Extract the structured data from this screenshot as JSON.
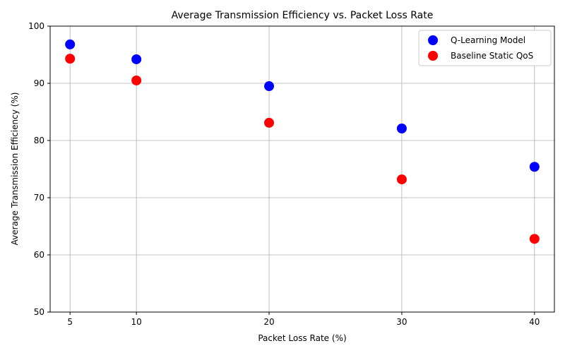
{
  "chart_data": {
    "type": "scatter",
    "title": "Average Transmission Efficiency vs. Packet Loss Rate",
    "xlabel": "Packet Loss Rate (%)",
    "ylabel": "Average Transmission Efficiency (%)",
    "x": [
      5,
      10,
      20,
      30,
      40
    ],
    "xticks": [
      5,
      10,
      20,
      30,
      40
    ],
    "xlim": [
      3.5,
      41.5
    ],
    "ylim": [
      50,
      100
    ],
    "yticks": [
      50,
      60,
      70,
      80,
      90,
      100
    ],
    "grid": true,
    "legend_position": "top-right",
    "series": [
      {
        "name": "Q-Learning Model",
        "color": "#0000ff",
        "values": [
          96.8,
          94.2,
          89.5,
          82.1,
          75.4
        ]
      },
      {
        "name": "Baseline Static QoS",
        "color": "#ff0000",
        "values": [
          94.3,
          90.5,
          83.1,
          73.2,
          62.8
        ]
      }
    ]
  }
}
